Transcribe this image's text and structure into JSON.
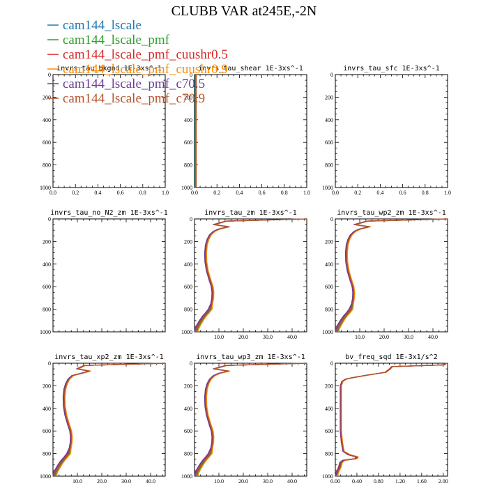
{
  "figure_title": "CLUBB VAR at245E,-2N",
  "legend": [
    {
      "label": "cam144_lscale",
      "color": "#1f77b4"
    },
    {
      "label": "cam144_lscale_pmf",
      "color": "#2ca02c"
    },
    {
      "label": "cam144_lscale_pmf_cuushr0.5",
      "color": "#d62728"
    },
    {
      "label": "cam144_lscale_pmf_cuushr0.9",
      "color": "#ff8c00"
    },
    {
      "label": "cam144_lscale_pmf_c70.5",
      "color": "#6a3d9a"
    },
    {
      "label": "cam144_lscale_pmf_c70.9",
      "color": "#b5532a"
    }
  ],
  "chart_data": [
    {
      "type": "line",
      "title": "invrs_tau_bkgnd   1E-3xs^-1",
      "xlim": [
        0,
        1
      ],
      "ylim": [
        1000,
        0
      ],
      "xticks": [
        "0.0",
        "0.2",
        "0.4",
        "0.6",
        "0.8",
        "1.0"
      ],
      "yticks": [
        "0",
        "200",
        "400",
        "600",
        "800",
        "1000"
      ],
      "profile": "none"
    },
    {
      "type": "line",
      "title": "invrs_tau_shear   1E-3xs^-1",
      "xlim": [
        0,
        1
      ],
      "ylim": [
        1000,
        0
      ],
      "xticks": [
        "0.0",
        "0.2",
        "0.4",
        "0.6",
        "0.8",
        "1.0"
      ],
      "yticks": [
        "0",
        "200",
        "400",
        "600",
        "800",
        "1000"
      ],
      "profile": "axis"
    },
    {
      "type": "line",
      "title": "invrs_tau_sfc   1E-3xs^-1",
      "xlim": [
        0,
        1
      ],
      "ylim": [
        1000,
        0
      ],
      "xticks": [
        "0.0",
        "0.2",
        "0.4",
        "0.6",
        "0.8",
        "1.0"
      ],
      "yticks": [
        "0",
        "200",
        "400",
        "600",
        "800",
        "1000"
      ],
      "profile": "none"
    },
    {
      "type": "line",
      "title": "invrs_tau_no_N2_zm   1E-3xs^-1",
      "xlim": [
        0,
        46
      ],
      "ylim": [
        1000,
        0
      ],
      "xticks": [
        "",
        "",
        "",
        ""
      ],
      "yticks": [
        "0",
        "200",
        "400",
        "600",
        "800",
        "1000"
      ],
      "profile": "none"
    },
    {
      "type": "line",
      "title": "invrs_tau_zm   1E-3xs^-1",
      "xlim": [
        0,
        46
      ],
      "ylim": [
        1000,
        0
      ],
      "xticks": [
        "10.0",
        "20.0",
        "30.0",
        "40.0"
      ],
      "yticks": [
        "0",
        "200",
        "400",
        "600",
        "800",
        "1000"
      ],
      "profile": "tau",
      "y": [
        0,
        20,
        50,
        70,
        90,
        110,
        140,
        180,
        230,
        300,
        380,
        460,
        540,
        600,
        650,
        700,
        750,
        800,
        830,
        860,
        900,
        940,
        970,
        1000
      ],
      "x": [
        46,
        13,
        8,
        14,
        10,
        8,
        6.5,
        5.5,
        4.8,
        4.5,
        4.6,
        5.2,
        6.3,
        7.2,
        7.5,
        7.4,
        7.0,
        6.3,
        5.2,
        4.0,
        2.7,
        1.6,
        0.9,
        0.5
      ]
    },
    {
      "type": "line",
      "title": "invrs_tau_wp2_zm   1E-3xs^-1",
      "xlim": [
        0,
        46
      ],
      "ylim": [
        1000,
        0
      ],
      "xticks": [
        "10.0",
        "20.0",
        "30.0",
        "40.0"
      ],
      "yticks": [
        "0",
        "200",
        "400",
        "600",
        "800",
        "1000"
      ],
      "profile": "tau",
      "y": [
        0,
        20,
        50,
        70,
        90,
        110,
        140,
        180,
        230,
        300,
        380,
        460,
        540,
        600,
        650,
        700,
        750,
        800,
        830,
        860,
        900,
        940,
        970,
        1000
      ],
      "x": [
        46,
        13,
        8,
        14,
        10,
        8,
        6.5,
        5.5,
        4.8,
        4.5,
        4.6,
        5.2,
        6.3,
        7.2,
        7.5,
        7.4,
        7.0,
        6.3,
        5.2,
        4.0,
        2.7,
        1.6,
        0.9,
        0.5
      ]
    },
    {
      "type": "line",
      "title": "invrs_tau_xp2_zm   1E-3xs^-1",
      "xlim": [
        0,
        46
      ],
      "ylim": [
        1000,
        0
      ],
      "xticks": [
        "10.0",
        "20.0",
        "30.0",
        "40.0"
      ],
      "yticks": [
        "0",
        "200",
        "400",
        "600",
        "800",
        "1000"
      ],
      "profile": "tau",
      "y": [
        0,
        20,
        50,
        70,
        90,
        110,
        140,
        180,
        230,
        300,
        380,
        460,
        540,
        600,
        650,
        700,
        750,
        800,
        830,
        860,
        900,
        940,
        970,
        1000
      ],
      "x": [
        46,
        13,
        10,
        15,
        11.5,
        8,
        6.5,
        5.5,
        4.8,
        4.5,
        4.6,
        5.2,
        6.3,
        7.2,
        7.5,
        7.4,
        7.0,
        6.3,
        5.2,
        4.0,
        2.7,
        1.6,
        0.9,
        0.5
      ]
    },
    {
      "type": "line",
      "title": "invrs_tau_wp3_zm   1E-3xs^-1",
      "xlim": [
        0,
        46
      ],
      "ylim": [
        1000,
        0
      ],
      "xticks": [
        "10.0",
        "20.0",
        "30.0",
        "40.0"
      ],
      "yticks": [
        "0",
        "200",
        "400",
        "600",
        "800",
        "1000"
      ],
      "profile": "tau",
      "y": [
        0,
        20,
        50,
        70,
        90,
        110,
        140,
        180,
        230,
        300,
        380,
        460,
        540,
        600,
        650,
        700,
        750,
        800,
        830,
        860,
        900,
        940,
        970,
        1000
      ],
      "x": [
        46,
        13,
        8,
        14,
        10,
        8,
        6.5,
        5.5,
        4.8,
        4.5,
        4.6,
        5.2,
        6.3,
        7.2,
        7.5,
        7.4,
        7.0,
        6.3,
        5.2,
        4.0,
        2.7,
        1.6,
        0.9,
        0.5
      ]
    },
    {
      "type": "line",
      "title": "bv_freq_sqd   1E-3x1/s^2",
      "xlim": [
        0,
        2.08
      ],
      "ylim": [
        1000,
        0
      ],
      "xticks": [
        "0.00",
        "0.40",
        "0.80",
        "1.20",
        "1.60",
        "2.00"
      ],
      "yticks": [
        "0",
        "200",
        "400",
        "600",
        "800",
        "1000"
      ],
      "profile": "bv",
      "y": [
        0,
        15,
        30,
        55,
        80,
        105,
        125,
        140,
        160,
        200,
        300,
        400,
        500,
        600,
        700,
        780,
        810,
        830,
        845,
        860,
        880,
        920,
        960,
        1000
      ],
      "x": [
        2.05,
        2.02,
        1.05,
        1.0,
        0.93,
        0.6,
        0.35,
        0.2,
        0.13,
        0.1,
        0.1,
        0.1,
        0.1,
        0.1,
        0.12,
        0.15,
        0.25,
        0.4,
        0.38,
        0.15,
        0.1,
        0.08,
        0.04,
        0.01
      ]
    }
  ]
}
